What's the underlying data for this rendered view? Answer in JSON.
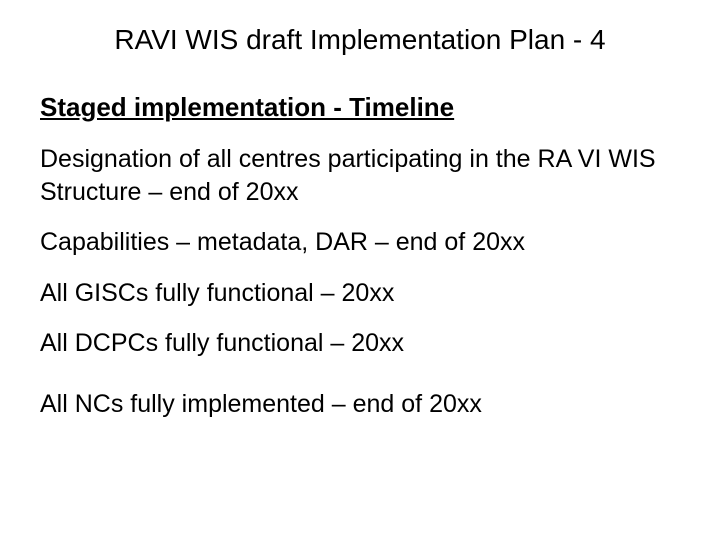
{
  "slide": {
    "title": "RAVI WIS draft Implementation Plan - 4",
    "sectionHeading": "Staged implementation - Timeline",
    "items": [
      "Designation of all centres participating in the RA VI WIS Structure – end of 20xx",
      "Capabilities – metadata, DAR – end of 20xx",
      "All GISCs fully functional – 20xx",
      "All DCPCs fully functional – 20xx",
      "All NCs fully implemented – end of 20xx"
    ]
  },
  "styles": {
    "background_color": "#ffffff",
    "text_color": "#000000",
    "title_fontsize": 28,
    "heading_fontsize": 26,
    "body_fontsize": 25,
    "font_family": "Arial"
  }
}
